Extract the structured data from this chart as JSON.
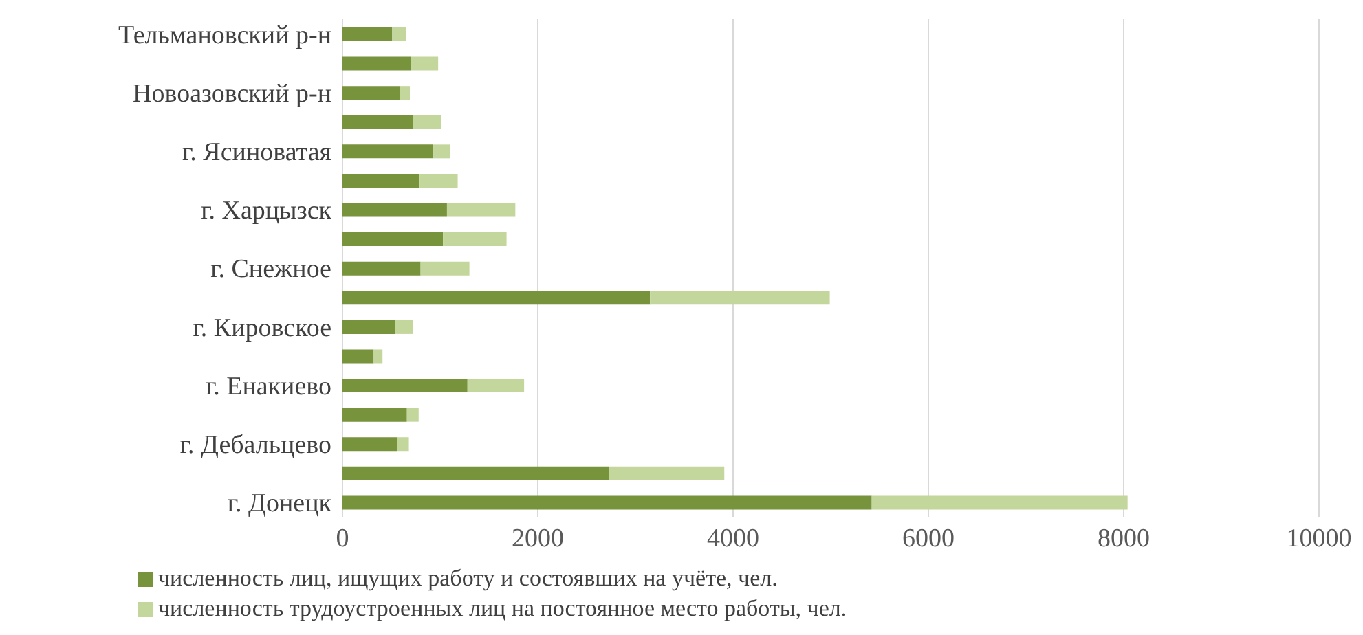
{
  "chart_data": {
    "type": "bar",
    "orientation": "horizontal",
    "stacked": true,
    "categories": [
      "Тельмановский р-н",
      null,
      "Новоазовский р-н",
      null,
      "г. Ясиноватая",
      null,
      "г. Харцызск",
      null,
      "г. Снежное",
      null,
      "г. Кировское",
      null,
      "г. Енакиево",
      null,
      "г. Дебальцево",
      null,
      "г. Донецк"
    ],
    "series": [
      {
        "name": "численность лиц, ищущих работу и состоявших на учёте, чел.",
        "color": "#77933c",
        "values": [
          510,
          700,
          590,
          720,
          930,
          790,
          1070,
          1030,
          800,
          3150,
          540,
          320,
          1280,
          660,
          560,
          2730,
          5420
        ]
      },
      {
        "name": "численность трудоустроенных лиц на постоянное место работы, чел.",
        "color": "#c3d69b",
        "values": [
          140,
          280,
          100,
          290,
          170,
          390,
          700,
          650,
          500,
          1840,
          180,
          90,
          580,
          120,
          120,
          1180,
          2620
        ]
      }
    ],
    "xlim": [
      0,
      10000
    ],
    "xticks": [
      0,
      2000,
      4000,
      6000,
      8000,
      10000
    ],
    "grid": "x",
    "legend": "bottom"
  }
}
